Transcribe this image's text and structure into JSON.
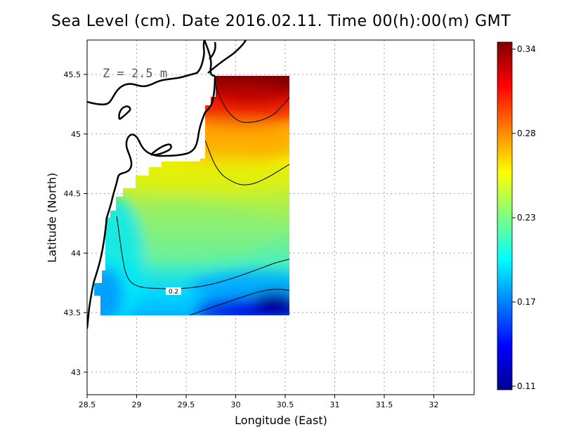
{
  "title": "Sea Level (cm). Date 2016.02.11. Time 00(h):00(m) GMT",
  "annotation": "Z = 2.5 m",
  "xlabel": "Longitude (East)",
  "ylabel": "Latitude (North)",
  "chart_data": {
    "type": "heatmap",
    "title": "Sea Level (cm). Date 2016.02.11. Time 00(h):00(m) GMT",
    "xlabel": "Longitude (East)",
    "ylabel": "Latitude (North)",
    "xlim": [
      28.5,
      32.4
    ],
    "ylim": [
      42.8,
      45.8
    ],
    "x_ticks": [
      "28.5",
      "29",
      "29.5",
      "30",
      "30.5",
      "31",
      "31.5",
      "32"
    ],
    "y_ticks": [
      "43",
      "43.5",
      "44",
      "44.5",
      "45",
      "45.5"
    ],
    "grid": true,
    "data_extent": {
      "lon": [
        28.63,
        30.55
      ],
      "lat": [
        43.5,
        45.5
      ]
    },
    "colorbar": {
      "min": 0.11,
      "max": 0.34,
      "ticks": [
        "0.34",
        "0.28",
        "0.23",
        "0.17",
        "0.11"
      ],
      "placement": "right"
    },
    "contour_labels": [
      "0.2"
    ],
    "field_samples": [
      {
        "lon": 30.1,
        "lat": 45.45,
        "value": 0.34
      },
      {
        "lon": 30.2,
        "lat": 45.1,
        "value": 0.3
      },
      {
        "lon": 30.3,
        "lat": 44.8,
        "value": 0.27
      },
      {
        "lon": 29.5,
        "lat": 44.4,
        "value": 0.24
      },
      {
        "lon": 29.5,
        "lat": 44.0,
        "value": 0.225
      },
      {
        "lon": 29.2,
        "lat": 43.75,
        "value": 0.2
      },
      {
        "lon": 28.8,
        "lat": 43.65,
        "value": 0.18
      },
      {
        "lon": 30.3,
        "lat": 43.6,
        "value": 0.13
      }
    ]
  }
}
